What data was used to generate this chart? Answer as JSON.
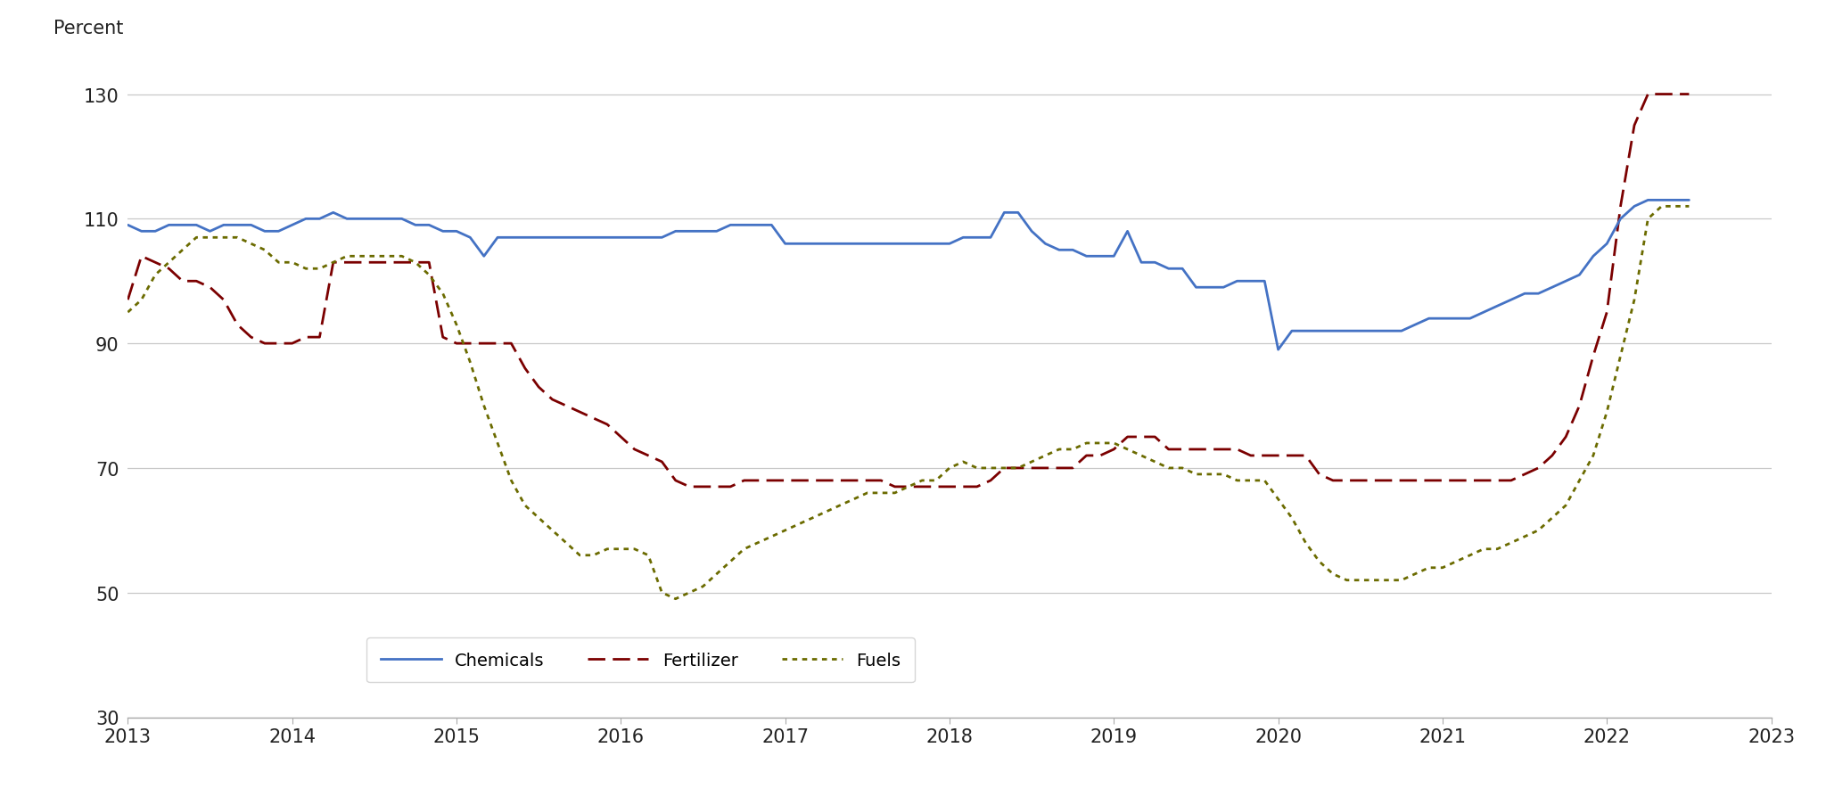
{
  "ylabel_top": "Percent",
  "xlim": [
    2013,
    2023
  ],
  "ylim": [
    30,
    135
  ],
  "yticks": [
    30,
    50,
    70,
    90,
    110,
    130
  ],
  "xticks": [
    2013,
    2014,
    2015,
    2016,
    2017,
    2018,
    2019,
    2020,
    2021,
    2022,
    2023
  ],
  "background_color": "#ffffff",
  "grid_color": "#c8c8c8",
  "chemicals": {
    "color": "#4472c4",
    "linewidth": 2.0,
    "label": "Chemicals",
    "x": [
      2013.0,
      2013.083,
      2013.167,
      2013.25,
      2013.333,
      2013.417,
      2013.5,
      2013.583,
      2013.667,
      2013.75,
      2013.833,
      2013.917,
      2014.0,
      2014.083,
      2014.167,
      2014.25,
      2014.333,
      2014.417,
      2014.5,
      2014.583,
      2014.667,
      2014.75,
      2014.833,
      2014.917,
      2015.0,
      2015.083,
      2015.167,
      2015.25,
      2015.333,
      2015.417,
      2015.5,
      2015.583,
      2015.667,
      2015.75,
      2015.833,
      2015.917,
      2016.0,
      2016.083,
      2016.167,
      2016.25,
      2016.333,
      2016.417,
      2016.5,
      2016.583,
      2016.667,
      2016.75,
      2016.833,
      2016.917,
      2017.0,
      2017.083,
      2017.167,
      2017.25,
      2017.333,
      2017.417,
      2017.5,
      2017.583,
      2017.667,
      2017.75,
      2017.833,
      2017.917,
      2018.0,
      2018.083,
      2018.167,
      2018.25,
      2018.333,
      2018.417,
      2018.5,
      2018.583,
      2018.667,
      2018.75,
      2018.833,
      2018.917,
      2019.0,
      2019.083,
      2019.167,
      2019.25,
      2019.333,
      2019.417,
      2019.5,
      2019.583,
      2019.667,
      2019.75,
      2019.833,
      2019.917,
      2020.0,
      2020.083,
      2020.167,
      2020.25,
      2020.333,
      2020.417,
      2020.5,
      2020.583,
      2020.667,
      2020.75,
      2020.833,
      2020.917,
      2021.0,
      2021.083,
      2021.167,
      2021.25,
      2021.333,
      2021.417,
      2021.5,
      2021.583,
      2021.667,
      2021.75,
      2021.833,
      2021.917,
      2022.0,
      2022.083,
      2022.167,
      2022.25,
      2022.333,
      2022.417,
      2022.5
    ],
    "y": [
      109,
      108,
      108,
      109,
      109,
      109,
      108,
      109,
      109,
      109,
      108,
      108,
      109,
      110,
      110,
      111,
      110,
      110,
      110,
      110,
      110,
      109,
      109,
      108,
      108,
      107,
      104,
      107,
      107,
      107,
      107,
      107,
      107,
      107,
      107,
      107,
      107,
      107,
      107,
      107,
      108,
      108,
      108,
      108,
      109,
      109,
      109,
      109,
      106,
      106,
      106,
      106,
      106,
      106,
      106,
      106,
      106,
      106,
      106,
      106,
      106,
      107,
      107,
      107,
      111,
      111,
      108,
      106,
      105,
      105,
      104,
      104,
      104,
      108,
      103,
      103,
      102,
      102,
      99,
      99,
      99,
      100,
      100,
      100,
      89,
      92,
      92,
      92,
      92,
      92,
      92,
      92,
      92,
      92,
      93,
      94,
      94,
      94,
      94,
      95,
      96,
      97,
      98,
      98,
      99,
      100,
      101,
      104,
      106,
      110,
      112,
      113,
      113,
      113,
      113
    ]
  },
  "fertilizer": {
    "color": "#7b0000",
    "linewidth": 2.0,
    "label": "Fertilizer",
    "x": [
      2013.0,
      2013.083,
      2013.167,
      2013.25,
      2013.333,
      2013.417,
      2013.5,
      2013.583,
      2013.667,
      2013.75,
      2013.833,
      2013.917,
      2014.0,
      2014.083,
      2014.167,
      2014.25,
      2014.333,
      2014.417,
      2014.5,
      2014.583,
      2014.667,
      2014.75,
      2014.833,
      2014.917,
      2015.0,
      2015.083,
      2015.167,
      2015.25,
      2015.333,
      2015.417,
      2015.5,
      2015.583,
      2015.667,
      2015.75,
      2015.833,
      2015.917,
      2016.0,
      2016.083,
      2016.167,
      2016.25,
      2016.333,
      2016.417,
      2016.5,
      2016.583,
      2016.667,
      2016.75,
      2016.833,
      2016.917,
      2017.0,
      2017.083,
      2017.167,
      2017.25,
      2017.333,
      2017.417,
      2017.5,
      2017.583,
      2017.667,
      2017.75,
      2017.833,
      2017.917,
      2018.0,
      2018.083,
      2018.167,
      2018.25,
      2018.333,
      2018.417,
      2018.5,
      2018.583,
      2018.667,
      2018.75,
      2018.833,
      2018.917,
      2019.0,
      2019.083,
      2019.167,
      2019.25,
      2019.333,
      2019.417,
      2019.5,
      2019.583,
      2019.667,
      2019.75,
      2019.833,
      2019.917,
      2020.0,
      2020.083,
      2020.167,
      2020.25,
      2020.333,
      2020.417,
      2020.5,
      2020.583,
      2020.667,
      2020.75,
      2020.833,
      2020.917,
      2021.0,
      2021.083,
      2021.167,
      2021.25,
      2021.333,
      2021.417,
      2021.5,
      2021.583,
      2021.667,
      2021.75,
      2021.833,
      2021.917,
      2022.0,
      2022.083,
      2022.167,
      2022.25,
      2022.333,
      2022.417,
      2022.5
    ],
    "y": [
      97,
      104,
      103,
      102,
      100,
      100,
      99,
      97,
      93,
      91,
      90,
      90,
      90,
      91,
      91,
      103,
      103,
      103,
      103,
      103,
      103,
      103,
      103,
      91,
      90,
      90,
      90,
      90,
      90,
      86,
      83,
      81,
      80,
      79,
      78,
      77,
      75,
      73,
      72,
      71,
      68,
      67,
      67,
      67,
      67,
      68,
      68,
      68,
      68,
      68,
      68,
      68,
      68,
      68,
      68,
      68,
      67,
      67,
      67,
      67,
      67,
      67,
      67,
      68,
      70,
      70,
      70,
      70,
      70,
      70,
      72,
      72,
      73,
      75,
      75,
      75,
      73,
      73,
      73,
      73,
      73,
      73,
      72,
      72,
      72,
      72,
      72,
      69,
      68,
      68,
      68,
      68,
      68,
      68,
      68,
      68,
      68,
      68,
      68,
      68,
      68,
      68,
      69,
      70,
      72,
      75,
      80,
      88,
      95,
      112,
      125,
      130,
      130,
      130,
      130
    ]
  },
  "fuels": {
    "color": "#6b6b00",
    "linewidth": 2.0,
    "label": "Fuels",
    "x": [
      2013.0,
      2013.083,
      2013.167,
      2013.25,
      2013.333,
      2013.417,
      2013.5,
      2013.583,
      2013.667,
      2013.75,
      2013.833,
      2013.917,
      2014.0,
      2014.083,
      2014.167,
      2014.25,
      2014.333,
      2014.417,
      2014.5,
      2014.583,
      2014.667,
      2014.75,
      2014.833,
      2014.917,
      2015.0,
      2015.083,
      2015.167,
      2015.25,
      2015.333,
      2015.417,
      2015.5,
      2015.583,
      2015.667,
      2015.75,
      2015.833,
      2015.917,
      2016.0,
      2016.083,
      2016.167,
      2016.25,
      2016.333,
      2016.417,
      2016.5,
      2016.583,
      2016.667,
      2016.75,
      2016.833,
      2016.917,
      2017.0,
      2017.083,
      2017.167,
      2017.25,
      2017.333,
      2017.417,
      2017.5,
      2017.583,
      2017.667,
      2017.75,
      2017.833,
      2017.917,
      2018.0,
      2018.083,
      2018.167,
      2018.25,
      2018.333,
      2018.417,
      2018.5,
      2018.583,
      2018.667,
      2018.75,
      2018.833,
      2018.917,
      2019.0,
      2019.083,
      2019.167,
      2019.25,
      2019.333,
      2019.417,
      2019.5,
      2019.583,
      2019.667,
      2019.75,
      2019.833,
      2019.917,
      2020.0,
      2020.083,
      2020.167,
      2020.25,
      2020.333,
      2020.417,
      2020.5,
      2020.583,
      2020.667,
      2020.75,
      2020.833,
      2020.917,
      2021.0,
      2021.083,
      2021.167,
      2021.25,
      2021.333,
      2021.417,
      2021.5,
      2021.583,
      2021.667,
      2021.75,
      2021.833,
      2021.917,
      2022.0,
      2022.083,
      2022.167,
      2022.25,
      2022.333,
      2022.417,
      2022.5
    ],
    "y": [
      95,
      97,
      101,
      103,
      105,
      107,
      107,
      107,
      107,
      106,
      105,
      103,
      103,
      102,
      102,
      103,
      104,
      104,
      104,
      104,
      104,
      103,
      101,
      98,
      93,
      87,
      80,
      74,
      68,
      64,
      62,
      60,
      58,
      56,
      56,
      57,
      57,
      57,
      56,
      50,
      49,
      50,
      51,
      53,
      55,
      57,
      58,
      59,
      60,
      61,
      62,
      63,
      64,
      65,
      66,
      66,
      66,
      67,
      68,
      68,
      70,
      71,
      70,
      70,
      70,
      70,
      71,
      72,
      73,
      73,
      74,
      74,
      74,
      73,
      72,
      71,
      70,
      70,
      69,
      69,
      69,
      68,
      68,
      68,
      65,
      62,
      58,
      55,
      53,
      52,
      52,
      52,
      52,
      52,
      53,
      54,
      54,
      55,
      56,
      57,
      57,
      58,
      59,
      60,
      62,
      64,
      68,
      72,
      79,
      88,
      97,
      110,
      112,
      112,
      112
    ]
  }
}
